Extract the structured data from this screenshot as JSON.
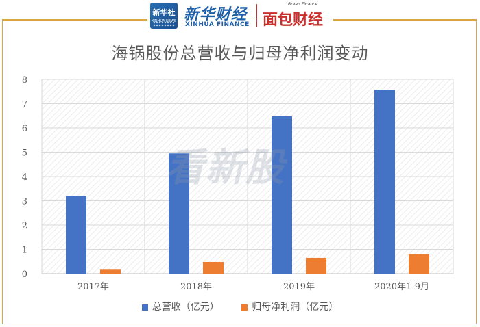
{
  "header": {
    "logo_xinhua_cn": "新华社",
    "logo_xinhua_en": "XINHUA NEWS",
    "brand_cn": "新华财经",
    "brand_en": "XINHUA FINANCE",
    "brand2_en": "Bread Finance",
    "brand2_cn": "面包财经"
  },
  "watermark": "看新股",
  "colors": {
    "revenue": "#4472c4",
    "profit": "#ed7d31",
    "frame": "#d9a640"
  },
  "chart_data": {
    "type": "bar",
    "title": "海锅股份总营收与归母净利润变动",
    "categories": [
      "2017年",
      "2018年",
      "2019年",
      "2020年1-9月"
    ],
    "series": [
      {
        "name": "总营收（亿元）",
        "values": [
          3.2,
          4.95,
          6.48,
          7.57
        ]
      },
      {
        "name": "归母净利润（亿元）",
        "values": [
          0.19,
          0.48,
          0.65,
          0.79
        ]
      }
    ],
    "yticks": [
      "0",
      "1",
      "2",
      "3",
      "4",
      "5",
      "6",
      "7",
      "8"
    ],
    "ylim": [
      0,
      8
    ],
    "xlabel": "",
    "ylabel": "",
    "grid": true,
    "legend_position": "bottom"
  }
}
